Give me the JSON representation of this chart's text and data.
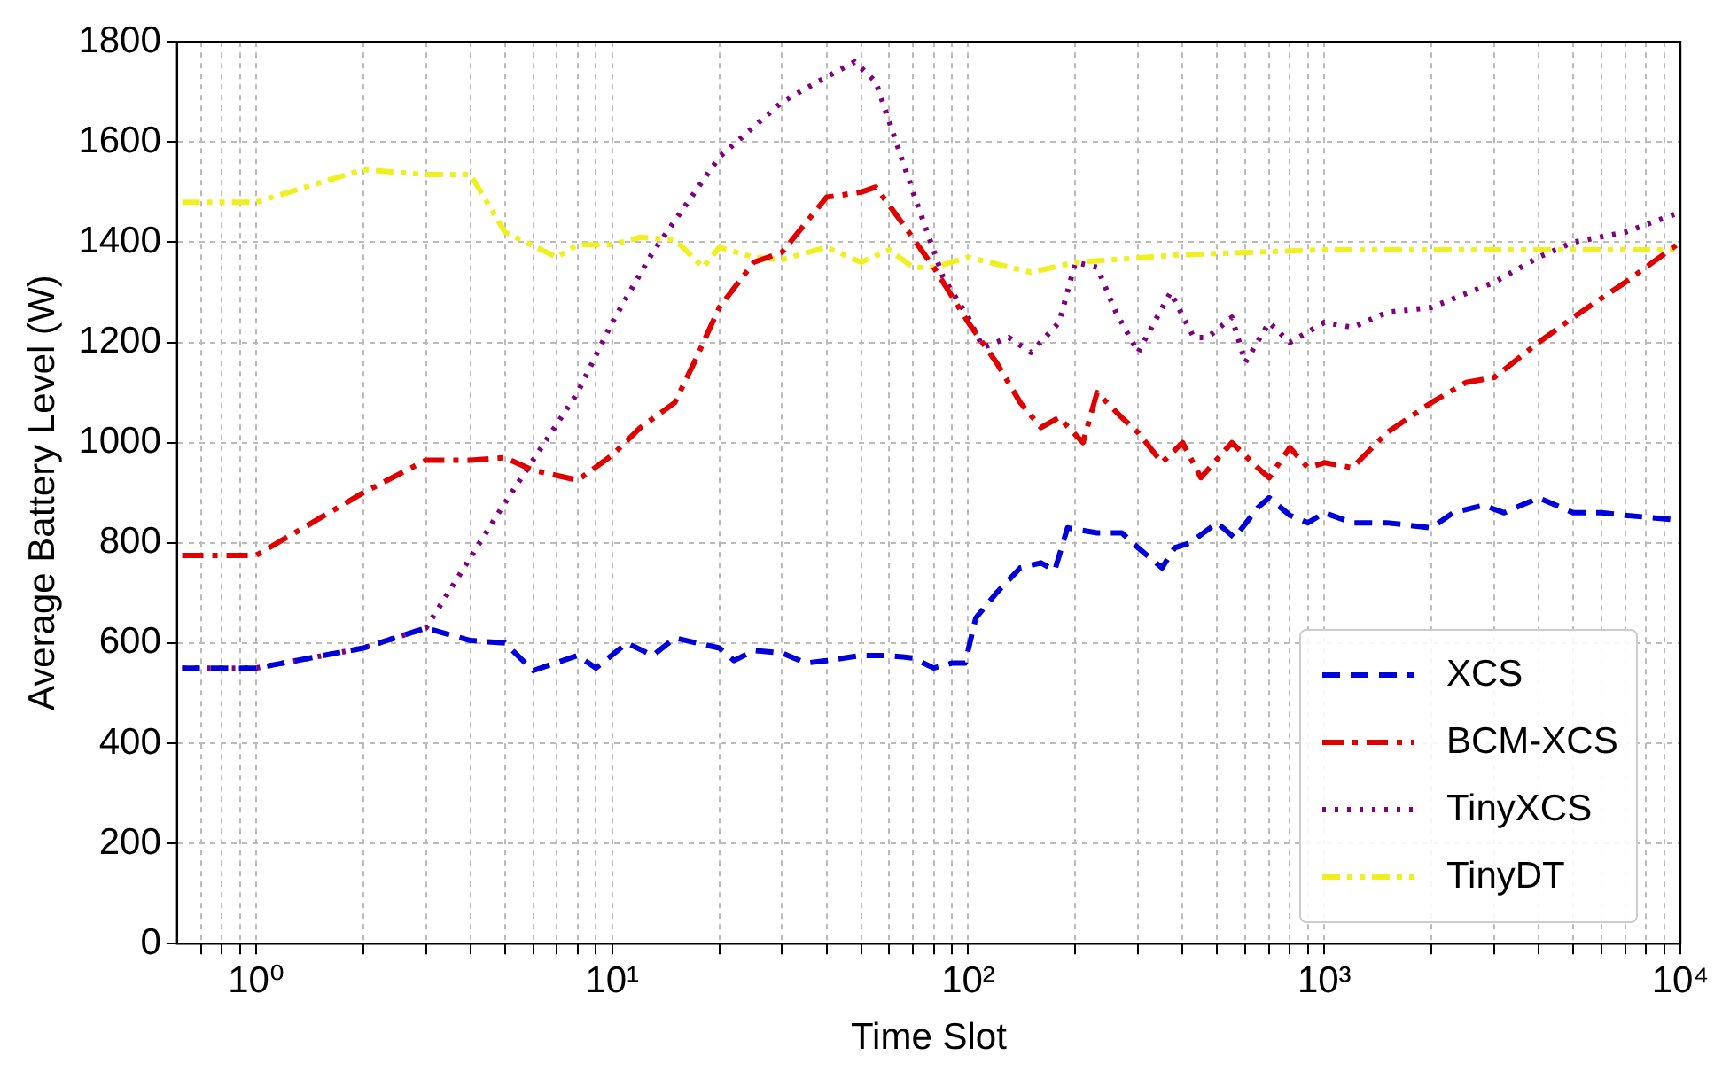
{
  "chart_data": {
    "type": "line",
    "xlabel": "Time Slot",
    "ylabel": "Average Battery Level (W)",
    "log": "x",
    "grid": true,
    "legend": "bottom right",
    "marker": "none",
    "xlim": [
      0.62,
      10000
    ],
    "xticks": [
      {
        "value": 0.7,
        "label": null
      },
      {
        "value": 0.8,
        "label": null
      },
      {
        "value": 0.9,
        "label": null
      },
      {
        "value": 1,
        "label": "10⁰"
      },
      {
        "value": 2,
        "label": null
      },
      {
        "value": 3,
        "label": null
      },
      {
        "value": 4,
        "label": null
      },
      {
        "value": 5,
        "label": null
      },
      {
        "value": 6,
        "label": null
      },
      {
        "value": 7,
        "label": null
      },
      {
        "value": 8,
        "label": null
      },
      {
        "value": 9,
        "label": null
      },
      {
        "value": 10,
        "label": "10¹"
      },
      {
        "value": 20,
        "label": null
      },
      {
        "value": 30,
        "label": null
      },
      {
        "value": 40,
        "label": null
      },
      {
        "value": 50,
        "label": null
      },
      {
        "value": 60,
        "label": null
      },
      {
        "value": 70,
        "label": null
      },
      {
        "value": 80,
        "label": null
      },
      {
        "value": 90,
        "label": null
      },
      {
        "value": 100,
        "label": "10²"
      },
      {
        "value": 200,
        "label": null
      },
      {
        "value": 300,
        "label": null
      },
      {
        "value": 400,
        "label": null
      },
      {
        "value": 500,
        "label": null
      },
      {
        "value": 600,
        "label": null
      },
      {
        "value": 700,
        "label": null
      },
      {
        "value": 800,
        "label": null
      },
      {
        "value": 900,
        "label": null
      },
      {
        "value": 1000,
        "label": "10³"
      },
      {
        "value": 2000,
        "label": null
      },
      {
        "value": 3000,
        "label": null
      },
      {
        "value": 4000,
        "label": null
      },
      {
        "value": 5000,
        "label": null
      },
      {
        "value": 6000,
        "label": null
      },
      {
        "value": 7000,
        "label": null
      },
      {
        "value": 8000,
        "label": null
      },
      {
        "value": 9000,
        "label": null
      },
      {
        "value": 10000,
        "label": "10⁴"
      }
    ],
    "ylim": [
      0,
      1800
    ],
    "yticks": [
      0,
      200,
      400,
      600,
      800,
      1000,
      1200,
      1400,
      1600,
      1800
    ],
    "series": [
      {
        "name": "XCS",
        "color": "#0000dd",
        "line_style": "dashed",
        "x": [
          0.62,
          1,
          2,
          3,
          4,
          5,
          6,
          8,
          9,
          11,
          13,
          15,
          20,
          22,
          25,
          30,
          35,
          40,
          50,
          60,
          70,
          80,
          90,
          98,
          105,
          120,
          140,
          160,
          175,
          190,
          230,
          270,
          300,
          350,
          380,
          420,
          500,
          560,
          650,
          700,
          800,
          900,
          1000,
          1200,
          1500,
          2000,
          2300,
          2800,
          3200,
          4000,
          5000,
          6000,
          7000,
          10000
        ],
        "values": [
          550,
          550,
          590,
          630,
          605,
          600,
          545,
          575,
          550,
          600,
          575,
          610,
          590,
          565,
          585,
          580,
          560,
          565,
          575,
          575,
          570,
          550,
          560,
          560,
          650,
          700,
          750,
          760,
          745,
          830,
          820,
          820,
          790,
          750,
          790,
          800,
          840,
          810,
          870,
          890,
          855,
          840,
          860,
          840,
          840,
          830,
          860,
          875,
          860,
          890,
          860,
          860,
          855,
          845
        ]
      },
      {
        "name": "BCM-XCS",
        "color": "#e00000",
        "line_style": "dashdot",
        "x": [
          0.62,
          1,
          2,
          3,
          4,
          5,
          6,
          8,
          10,
          12,
          15,
          17,
          20,
          25,
          30,
          40,
          50,
          55,
          65,
          80,
          100,
          120,
          140,
          160,
          180,
          210,
          230,
          270,
          300,
          350,
          400,
          450,
          550,
          650,
          700,
          800,
          900,
          1000,
          1200,
          1500,
          2000,
          2500,
          3000,
          4000,
          5000,
          7000,
          10000
        ],
        "values": [
          775,
          775,
          900,
          965,
          965,
          970,
          945,
          925,
          975,
          1030,
          1080,
          1160,
          1270,
          1360,
          1380,
          1490,
          1500,
          1510,
          1440,
          1350,
          1240,
          1160,
          1080,
          1030,
          1050,
          1000,
          1100,
          1050,
          1020,
          960,
          1000,
          930,
          1000,
          950,
          930,
          990,
          950,
          960,
          950,
          1020,
          1080,
          1120,
          1130,
          1200,
          1250,
          1320,
          1400
        ]
      },
      {
        "name": "TinyXCS",
        "color": "#800080",
        "line_style": "dotted",
        "x": [
          0.62,
          1,
          2,
          3,
          5,
          8,
          10,
          13,
          20,
          30,
          40,
          48,
          55,
          70,
          85,
          100,
          110,
          130,
          150,
          180,
          200,
          230,
          260,
          300,
          370,
          430,
          470,
          550,
          600,
          700,
          800,
          1000,
          1200,
          1500,
          2000,
          3000,
          4000,
          5000,
          7000,
          10000
        ],
        "values": [
          550,
          550,
          590,
          630,
          880,
          1100,
          1240,
          1380,
          1570,
          1680,
          1730,
          1760,
          1720,
          1500,
          1330,
          1250,
          1190,
          1210,
          1180,
          1240,
          1360,
          1350,
          1260,
          1180,
          1300,
          1210,
          1210,
          1250,
          1160,
          1240,
          1200,
          1240,
          1230,
          1260,
          1270,
          1320,
          1370,
          1400,
          1420,
          1460
        ]
      },
      {
        "name": "TinyDT",
        "color": "#f0f020",
        "line_style": "dashdotdot",
        "x": [
          0.62,
          1,
          2,
          3,
          4,
          5,
          7,
          8,
          10,
          12,
          15,
          18,
          20,
          25,
          30,
          40,
          50,
          60,
          70,
          80,
          100,
          150,
          200,
          400,
          1000,
          2000,
          5000,
          10000
        ],
        "values": [
          1480,
          1480,
          1545,
          1535,
          1535,
          1420,
          1370,
          1395,
          1395,
          1410,
          1405,
          1350,
          1390,
          1370,
          1365,
          1390,
          1360,
          1385,
          1350,
          1350,
          1370,
          1340,
          1360,
          1375,
          1385,
          1385,
          1385,
          1385
        ]
      }
    ]
  }
}
